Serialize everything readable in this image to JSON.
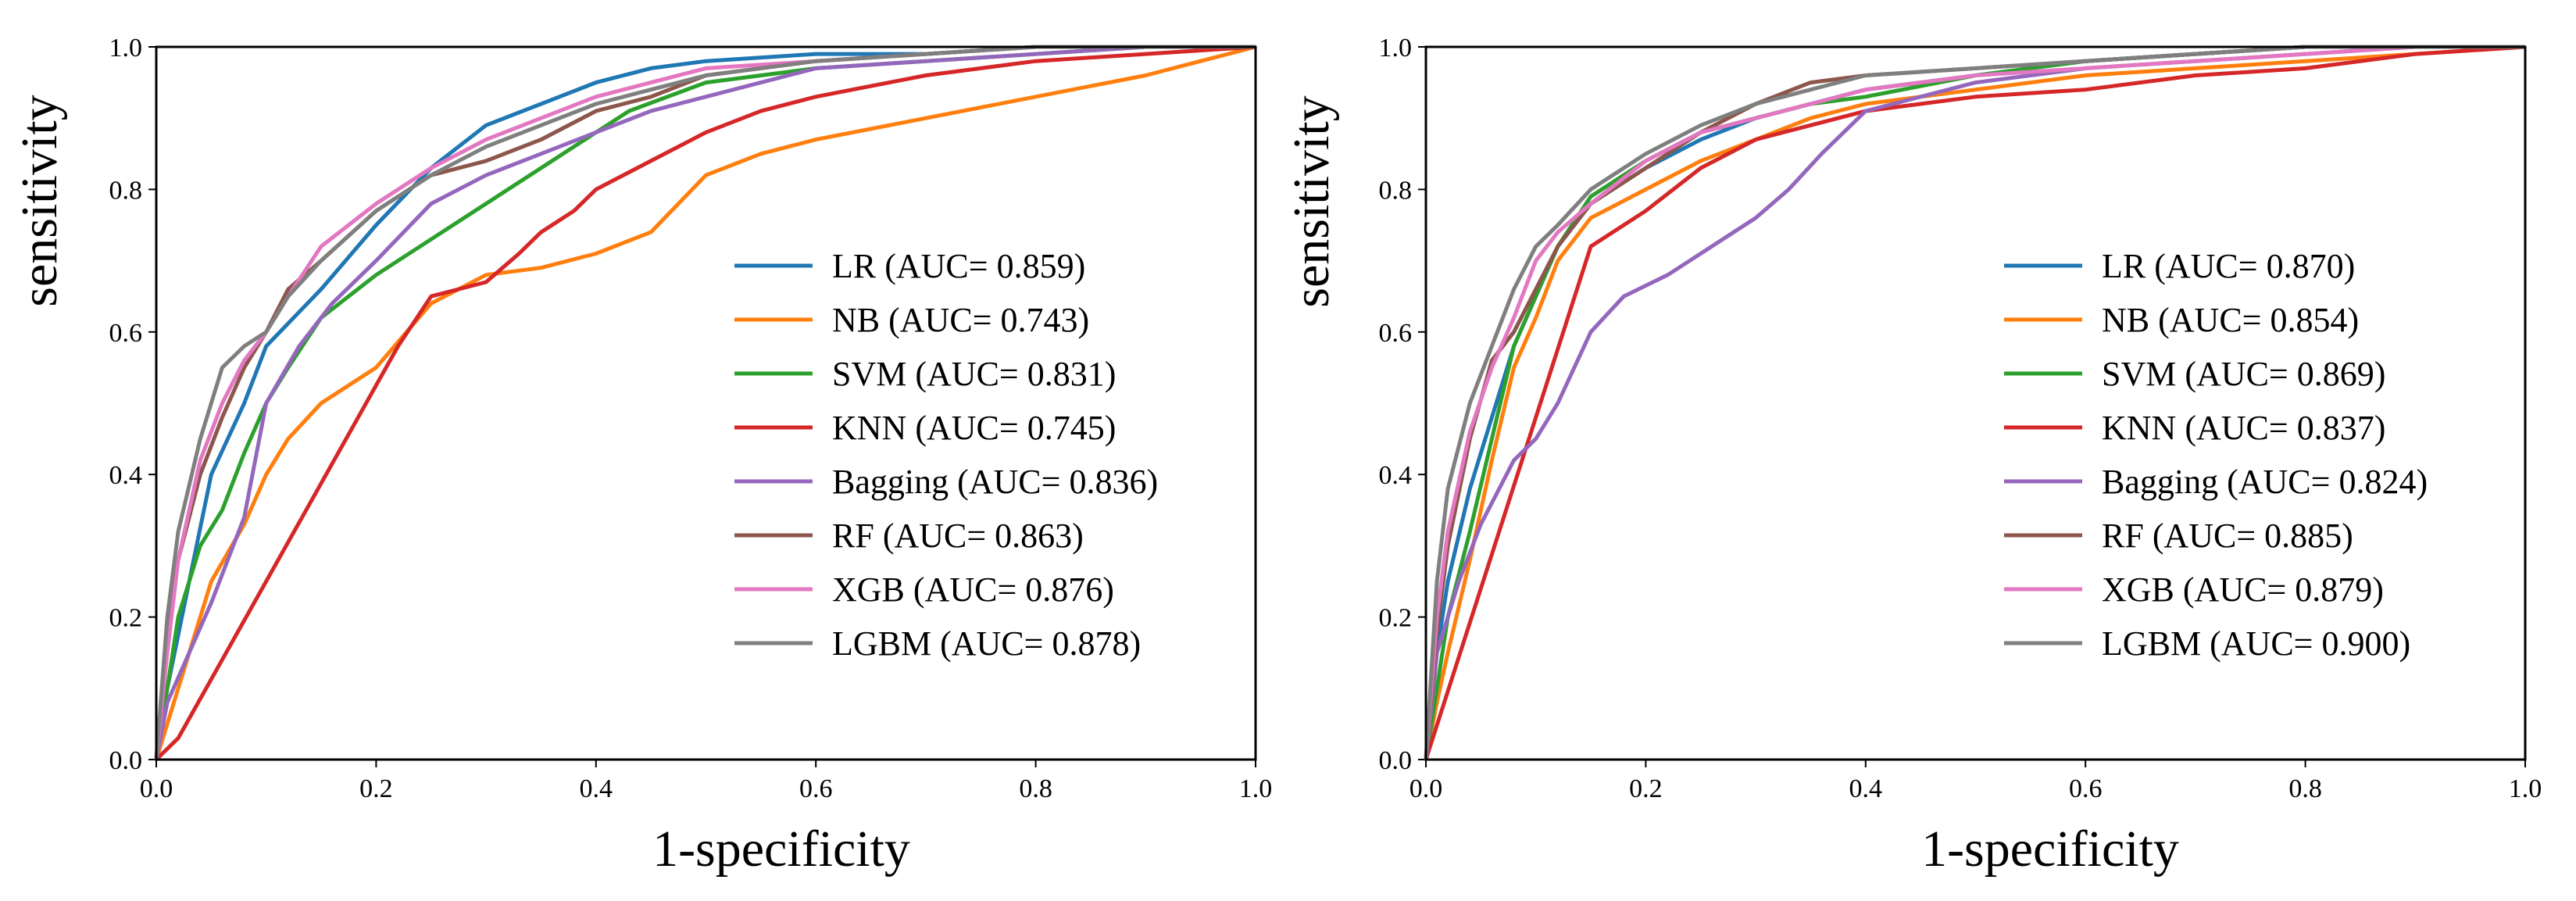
{
  "colors": {
    "LR": "#1f77b4",
    "NB": "#ff7f0e",
    "SVM": "#2ca02c",
    "KNN": "#d62728",
    "Bagging": "#9467bd",
    "RF": "#8c564b",
    "XGB": "#e377c2",
    "LGBM": "#7f7f7f"
  },
  "chart_data": [
    {
      "type": "line",
      "title": "",
      "xlabel": "1-specificity",
      "ylabel": "sensitivity",
      "xlim": [
        0.0,
        1.0
      ],
      "ylim": [
        0.0,
        1.0
      ],
      "xticks": [
        "0.0",
        "0.2",
        "0.4",
        "0.6",
        "0.8",
        "1.0"
      ],
      "yticks": [
        "0.0",
        "0.2",
        "0.4",
        "0.6",
        "0.8",
        "1.0"
      ],
      "grid": false,
      "legend_position": "lower-right",
      "series": [
        {
          "name": "LR",
          "label": "LR (AUC= 0.859)",
          "x": [
            0,
            0.01,
            0.03,
            0.05,
            0.08,
            0.1,
            0.15,
            0.2,
            0.25,
            0.3,
            0.35,
            0.4,
            0.45,
            0.5,
            0.6,
            0.7,
            0.8,
            0.9,
            1.0
          ],
          "y": [
            0,
            0.1,
            0.25,
            0.4,
            0.5,
            0.58,
            0.66,
            0.75,
            0.83,
            0.89,
            0.92,
            0.95,
            0.97,
            0.98,
            0.99,
            0.99,
            1.0,
            1.0,
            1.0
          ]
        },
        {
          "name": "NB",
          "label": "NB (AUC= 0.743)",
          "x": [
            0,
            0.01,
            0.03,
            0.05,
            0.08,
            0.1,
            0.12,
            0.15,
            0.2,
            0.25,
            0.3,
            0.35,
            0.4,
            0.45,
            0.5,
            0.55,
            0.6,
            0.7,
            0.8,
            0.9,
            0.95,
            1.0
          ],
          "y": [
            0,
            0.05,
            0.15,
            0.25,
            0.33,
            0.4,
            0.45,
            0.5,
            0.55,
            0.64,
            0.68,
            0.69,
            0.71,
            0.74,
            0.82,
            0.85,
            0.87,
            0.9,
            0.93,
            0.96,
            0.98,
            1.0
          ]
        },
        {
          "name": "SVM",
          "label": "SVM (AUC= 0.831)",
          "x": [
            0,
            0.01,
            0.02,
            0.04,
            0.06,
            0.08,
            0.1,
            0.12,
            0.15,
            0.2,
            0.25,
            0.3,
            0.35,
            0.4,
            0.43,
            0.5,
            0.6,
            0.7,
            0.8,
            0.9,
            1.0
          ],
          "y": [
            0,
            0.1,
            0.2,
            0.3,
            0.35,
            0.43,
            0.5,
            0.55,
            0.62,
            0.68,
            0.73,
            0.78,
            0.83,
            0.88,
            0.91,
            0.95,
            0.97,
            0.98,
            0.99,
            1.0,
            1.0
          ]
        },
        {
          "name": "KNN",
          "label": "KNN (AUC= 0.745)",
          "x": [
            0,
            0.02,
            0.22,
            0.25,
            0.3,
            0.33,
            0.35,
            0.38,
            0.4,
            0.45,
            0.5,
            0.55,
            0.6,
            0.7,
            0.8,
            0.9,
            1.0
          ],
          "y": [
            0,
            0.03,
            0.58,
            0.65,
            0.67,
            0.71,
            0.74,
            0.77,
            0.8,
            0.84,
            0.88,
            0.91,
            0.93,
            0.96,
            0.98,
            0.99,
            1.0
          ]
        },
        {
          "name": "Bagging",
          "label": "Bagging (AUC= 0.836)",
          "x": [
            0,
            0.01,
            0.03,
            0.05,
            0.08,
            0.1,
            0.13,
            0.16,
            0.2,
            0.25,
            0.3,
            0.35,
            0.4,
            0.45,
            0.5,
            0.55,
            0.6,
            0.7,
            0.8,
            0.9,
            1.0
          ],
          "y": [
            0,
            0.08,
            0.15,
            0.22,
            0.34,
            0.5,
            0.58,
            0.64,
            0.7,
            0.78,
            0.82,
            0.85,
            0.88,
            0.91,
            0.93,
            0.95,
            0.97,
            0.98,
            0.99,
            1.0,
            1.0
          ]
        },
        {
          "name": "RF",
          "label": "RF (AUC= 0.863)",
          "x": [
            0,
            0.01,
            0.02,
            0.04,
            0.06,
            0.08,
            0.1,
            0.12,
            0.15,
            0.2,
            0.25,
            0.3,
            0.35,
            0.4,
            0.45,
            0.5,
            0.6,
            0.7,
            0.8,
            0.9,
            1.0
          ],
          "y": [
            0,
            0.18,
            0.28,
            0.4,
            0.48,
            0.55,
            0.6,
            0.66,
            0.7,
            0.77,
            0.82,
            0.84,
            0.87,
            0.91,
            0.93,
            0.96,
            0.98,
            0.99,
            1.0,
            1.0,
            1.0
          ]
        },
        {
          "name": "XGB",
          "label": "XGB (AUC= 0.876)",
          "x": [
            0,
            0.01,
            0.02,
            0.04,
            0.06,
            0.08,
            0.1,
            0.12,
            0.15,
            0.2,
            0.25,
            0.3,
            0.35,
            0.4,
            0.45,
            0.5,
            0.6,
            0.7,
            0.8,
            0.9,
            1.0
          ],
          "y": [
            0,
            0.15,
            0.28,
            0.42,
            0.5,
            0.56,
            0.6,
            0.65,
            0.72,
            0.78,
            0.83,
            0.87,
            0.9,
            0.93,
            0.95,
            0.97,
            0.98,
            0.99,
            1.0,
            1.0,
            1.0
          ]
        },
        {
          "name": "LGBM",
          "label": "LGBM (AUC= 0.878)",
          "x": [
            0,
            0.01,
            0.02,
            0.04,
            0.06,
            0.08,
            0.1,
            0.12,
            0.15,
            0.2,
            0.25,
            0.3,
            0.35,
            0.4,
            0.45,
            0.5,
            0.6,
            0.7,
            0.8,
            0.9,
            1.0
          ],
          "y": [
            0,
            0.2,
            0.32,
            0.45,
            0.55,
            0.58,
            0.6,
            0.65,
            0.7,
            0.77,
            0.82,
            0.86,
            0.89,
            0.92,
            0.94,
            0.96,
            0.98,
            0.99,
            1.0,
            1.0,
            1.0
          ]
        }
      ]
    },
    {
      "type": "line",
      "title": "",
      "xlabel": "1-specificity",
      "ylabel": "sensitivity",
      "xlim": [
        0.0,
        1.0
      ],
      "ylim": [
        0.0,
        1.0
      ],
      "xticks": [
        "0.0",
        "0.2",
        "0.4",
        "0.6",
        "0.8",
        "1.0"
      ],
      "yticks": [
        "0.0",
        "0.2",
        "0.4",
        "0.6",
        "0.8",
        "1.0"
      ],
      "grid": false,
      "legend_position": "lower-right",
      "series": [
        {
          "name": "LR",
          "label": "LR (AUC= 0.870)",
          "x": [
            0,
            0.01,
            0.02,
            0.04,
            0.06,
            0.08,
            0.1,
            0.12,
            0.15,
            0.2,
            0.25,
            0.3,
            0.35,
            0.4,
            0.5,
            0.6,
            0.7,
            0.8,
            0.9,
            1.0
          ],
          "y": [
            0,
            0.15,
            0.25,
            0.38,
            0.48,
            0.58,
            0.65,
            0.72,
            0.78,
            0.83,
            0.87,
            0.9,
            0.92,
            0.94,
            0.96,
            0.98,
            0.99,
            1.0,
            1.0,
            1.0
          ]
        },
        {
          "name": "NB",
          "label": "NB (AUC= 0.854)",
          "x": [
            0,
            0.01,
            0.02,
            0.04,
            0.06,
            0.08,
            0.1,
            0.12,
            0.15,
            0.2,
            0.25,
            0.3,
            0.35,
            0.4,
            0.5,
            0.6,
            0.7,
            0.8,
            0.9,
            1.0
          ],
          "y": [
            0,
            0.08,
            0.15,
            0.28,
            0.42,
            0.55,
            0.62,
            0.7,
            0.76,
            0.8,
            0.84,
            0.87,
            0.9,
            0.92,
            0.94,
            0.96,
            0.97,
            0.98,
            0.99,
            1.0
          ]
        },
        {
          "name": "SVM",
          "label": "SVM (AUC= 0.869)",
          "x": [
            0,
            0.01,
            0.02,
            0.04,
            0.06,
            0.08,
            0.1,
            0.12,
            0.15,
            0.2,
            0.25,
            0.3,
            0.35,
            0.4,
            0.5,
            0.6,
            0.7,
            0.8,
            0.9,
            1.0
          ],
          "y": [
            0,
            0.1,
            0.2,
            0.32,
            0.45,
            0.58,
            0.65,
            0.72,
            0.79,
            0.84,
            0.88,
            0.9,
            0.92,
            0.93,
            0.96,
            0.98,
            0.99,
            1.0,
            1.0,
            1.0
          ]
        },
        {
          "name": "KNN",
          "label": "KNN (AUC= 0.837)",
          "x": [
            0,
            0.15,
            0.2,
            0.25,
            0.3,
            0.35,
            0.4,
            0.5,
            0.6,
            0.7,
            0.8,
            0.9,
            1.0
          ],
          "y": [
            0,
            0.72,
            0.77,
            0.83,
            0.87,
            0.89,
            0.91,
            0.93,
            0.94,
            0.96,
            0.97,
            0.99,
            1.0
          ]
        },
        {
          "name": "Bagging",
          "label": "Bagging (AUC= 0.824)",
          "x": [
            0,
            0.01,
            0.03,
            0.05,
            0.08,
            0.1,
            0.12,
            0.15,
            0.18,
            0.22,
            0.26,
            0.3,
            0.33,
            0.36,
            0.4,
            0.45,
            0.5,
            0.6,
            0.7,
            0.8,
            0.9,
            1.0
          ],
          "y": [
            0,
            0.15,
            0.25,
            0.33,
            0.42,
            0.45,
            0.5,
            0.6,
            0.65,
            0.68,
            0.72,
            0.76,
            0.8,
            0.85,
            0.91,
            0.93,
            0.95,
            0.97,
            0.98,
            0.99,
            1.0,
            1.0
          ]
        },
        {
          "name": "RF",
          "label": "RF (AUC= 0.885)",
          "x": [
            0,
            0.01,
            0.02,
            0.04,
            0.06,
            0.08,
            0.1,
            0.12,
            0.15,
            0.2,
            0.25,
            0.3,
            0.35,
            0.4,
            0.5,
            0.6,
            0.7,
            0.8,
            0.9,
            1.0
          ],
          "y": [
            0,
            0.18,
            0.3,
            0.45,
            0.56,
            0.6,
            0.66,
            0.72,
            0.78,
            0.83,
            0.88,
            0.92,
            0.95,
            0.96,
            0.97,
            0.98,
            0.99,
            1.0,
            1.0,
            1.0
          ]
        },
        {
          "name": "XGB",
          "label": "XGB (AUC= 0.879)",
          "x": [
            0,
            0.01,
            0.02,
            0.04,
            0.06,
            0.08,
            0.1,
            0.12,
            0.15,
            0.2,
            0.25,
            0.3,
            0.35,
            0.4,
            0.5,
            0.6,
            0.7,
            0.8,
            0.9,
            1.0
          ],
          "y": [
            0,
            0.2,
            0.32,
            0.46,
            0.55,
            0.62,
            0.7,
            0.74,
            0.78,
            0.84,
            0.88,
            0.9,
            0.92,
            0.94,
            0.96,
            0.97,
            0.98,
            0.99,
            1.0,
            1.0
          ]
        },
        {
          "name": "LGBM",
          "label": "LGBM (AUC= 0.900)",
          "x": [
            0,
            0.01,
            0.02,
            0.04,
            0.06,
            0.08,
            0.1,
            0.12,
            0.15,
            0.2,
            0.25,
            0.3,
            0.35,
            0.4,
            0.5,
            0.6,
            0.7,
            0.8,
            0.9,
            1.0
          ],
          "y": [
            0,
            0.25,
            0.38,
            0.5,
            0.58,
            0.66,
            0.72,
            0.75,
            0.8,
            0.85,
            0.89,
            0.92,
            0.94,
            0.96,
            0.97,
            0.98,
            0.99,
            1.0,
            1.0,
            1.0
          ]
        }
      ]
    }
  ]
}
